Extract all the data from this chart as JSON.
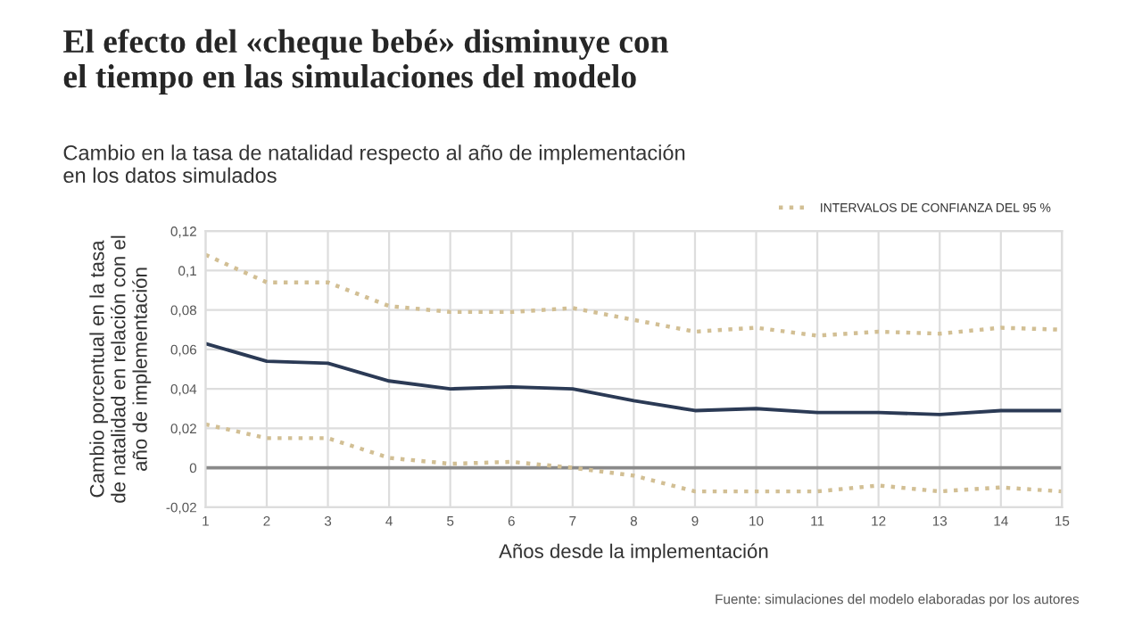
{
  "chart_data": {
    "type": "line",
    "title": "El efecto del «cheque bebé» disminuye con\nel tiempo en las simulaciones del modelo",
    "subtitle": "Cambio en la tasa de natalidad respecto al año de implementación\nen los datos simulados",
    "xlabel": "Años desde la implementación",
    "ylabel": "Cambio porcentual en la tasa\nde natalidad en relación con el\naño de implementación",
    "annotations": [
      "Fuente: simulaciones del modelo elaboradas por los autores"
    ],
    "x": [
      1,
      2,
      3,
      4,
      5,
      6,
      7,
      8,
      9,
      10,
      11,
      12,
      13,
      14,
      15
    ],
    "series": [
      {
        "color": "#2b3a55",
        "line_style": "solid",
        "values": [
          0.063,
          0.054,
          0.053,
          0.044,
          0.04,
          0.041,
          0.04,
          0.034,
          0.029,
          0.03,
          0.028,
          0.028,
          0.027,
          0.029,
          0.029
        ]
      },
      {
        "name": "INTERVALOS DE CONFIANZA DEL 95 %",
        "color": "#d2bf94",
        "line_style": "dotted",
        "values": [
          0.108,
          0.094,
          0.094,
          0.082,
          0.079,
          0.079,
          0.081,
          0.075,
          0.069,
          0.071,
          0.067,
          0.069,
          0.068,
          0.071,
          0.07
        ]
      },
      {
        "color": "#d2bf94",
        "line_style": "dotted",
        "values": [
          0.022,
          0.015,
          0.015,
          0.005,
          0.002,
          0.003,
          0.0,
          -0.004,
          -0.012,
          -0.012,
          -0.012,
          -0.009,
          -0.012,
          -0.01,
          -0.012
        ]
      }
    ],
    "xlim": [
      1,
      15
    ],
    "xticks": [
      1,
      2,
      3,
      4,
      5,
      6,
      7,
      8,
      9,
      10,
      11,
      12,
      13,
      14,
      15
    ],
    "ylim": [
      -0.02,
      0.12
    ],
    "yticks": [
      {
        "value": -0.02,
        "label": "-0,02"
      },
      {
        "value": 0,
        "label": "0"
      },
      {
        "value": 0.02,
        "label": "0,02"
      },
      {
        "value": 0.04,
        "label": "0,04"
      },
      {
        "value": 0.06,
        "label": "0,06"
      },
      {
        "value": 0.08,
        "label": "0,08"
      },
      {
        "value": 0.1,
        "label": "0,1"
      },
      {
        "value": 0.12,
        "label": "0,12"
      }
    ],
    "ref_lines": [
      {
        "axis": "y",
        "value": 0,
        "color": "#8a8a8a"
      }
    ],
    "grid": true,
    "legend": "top right"
  }
}
